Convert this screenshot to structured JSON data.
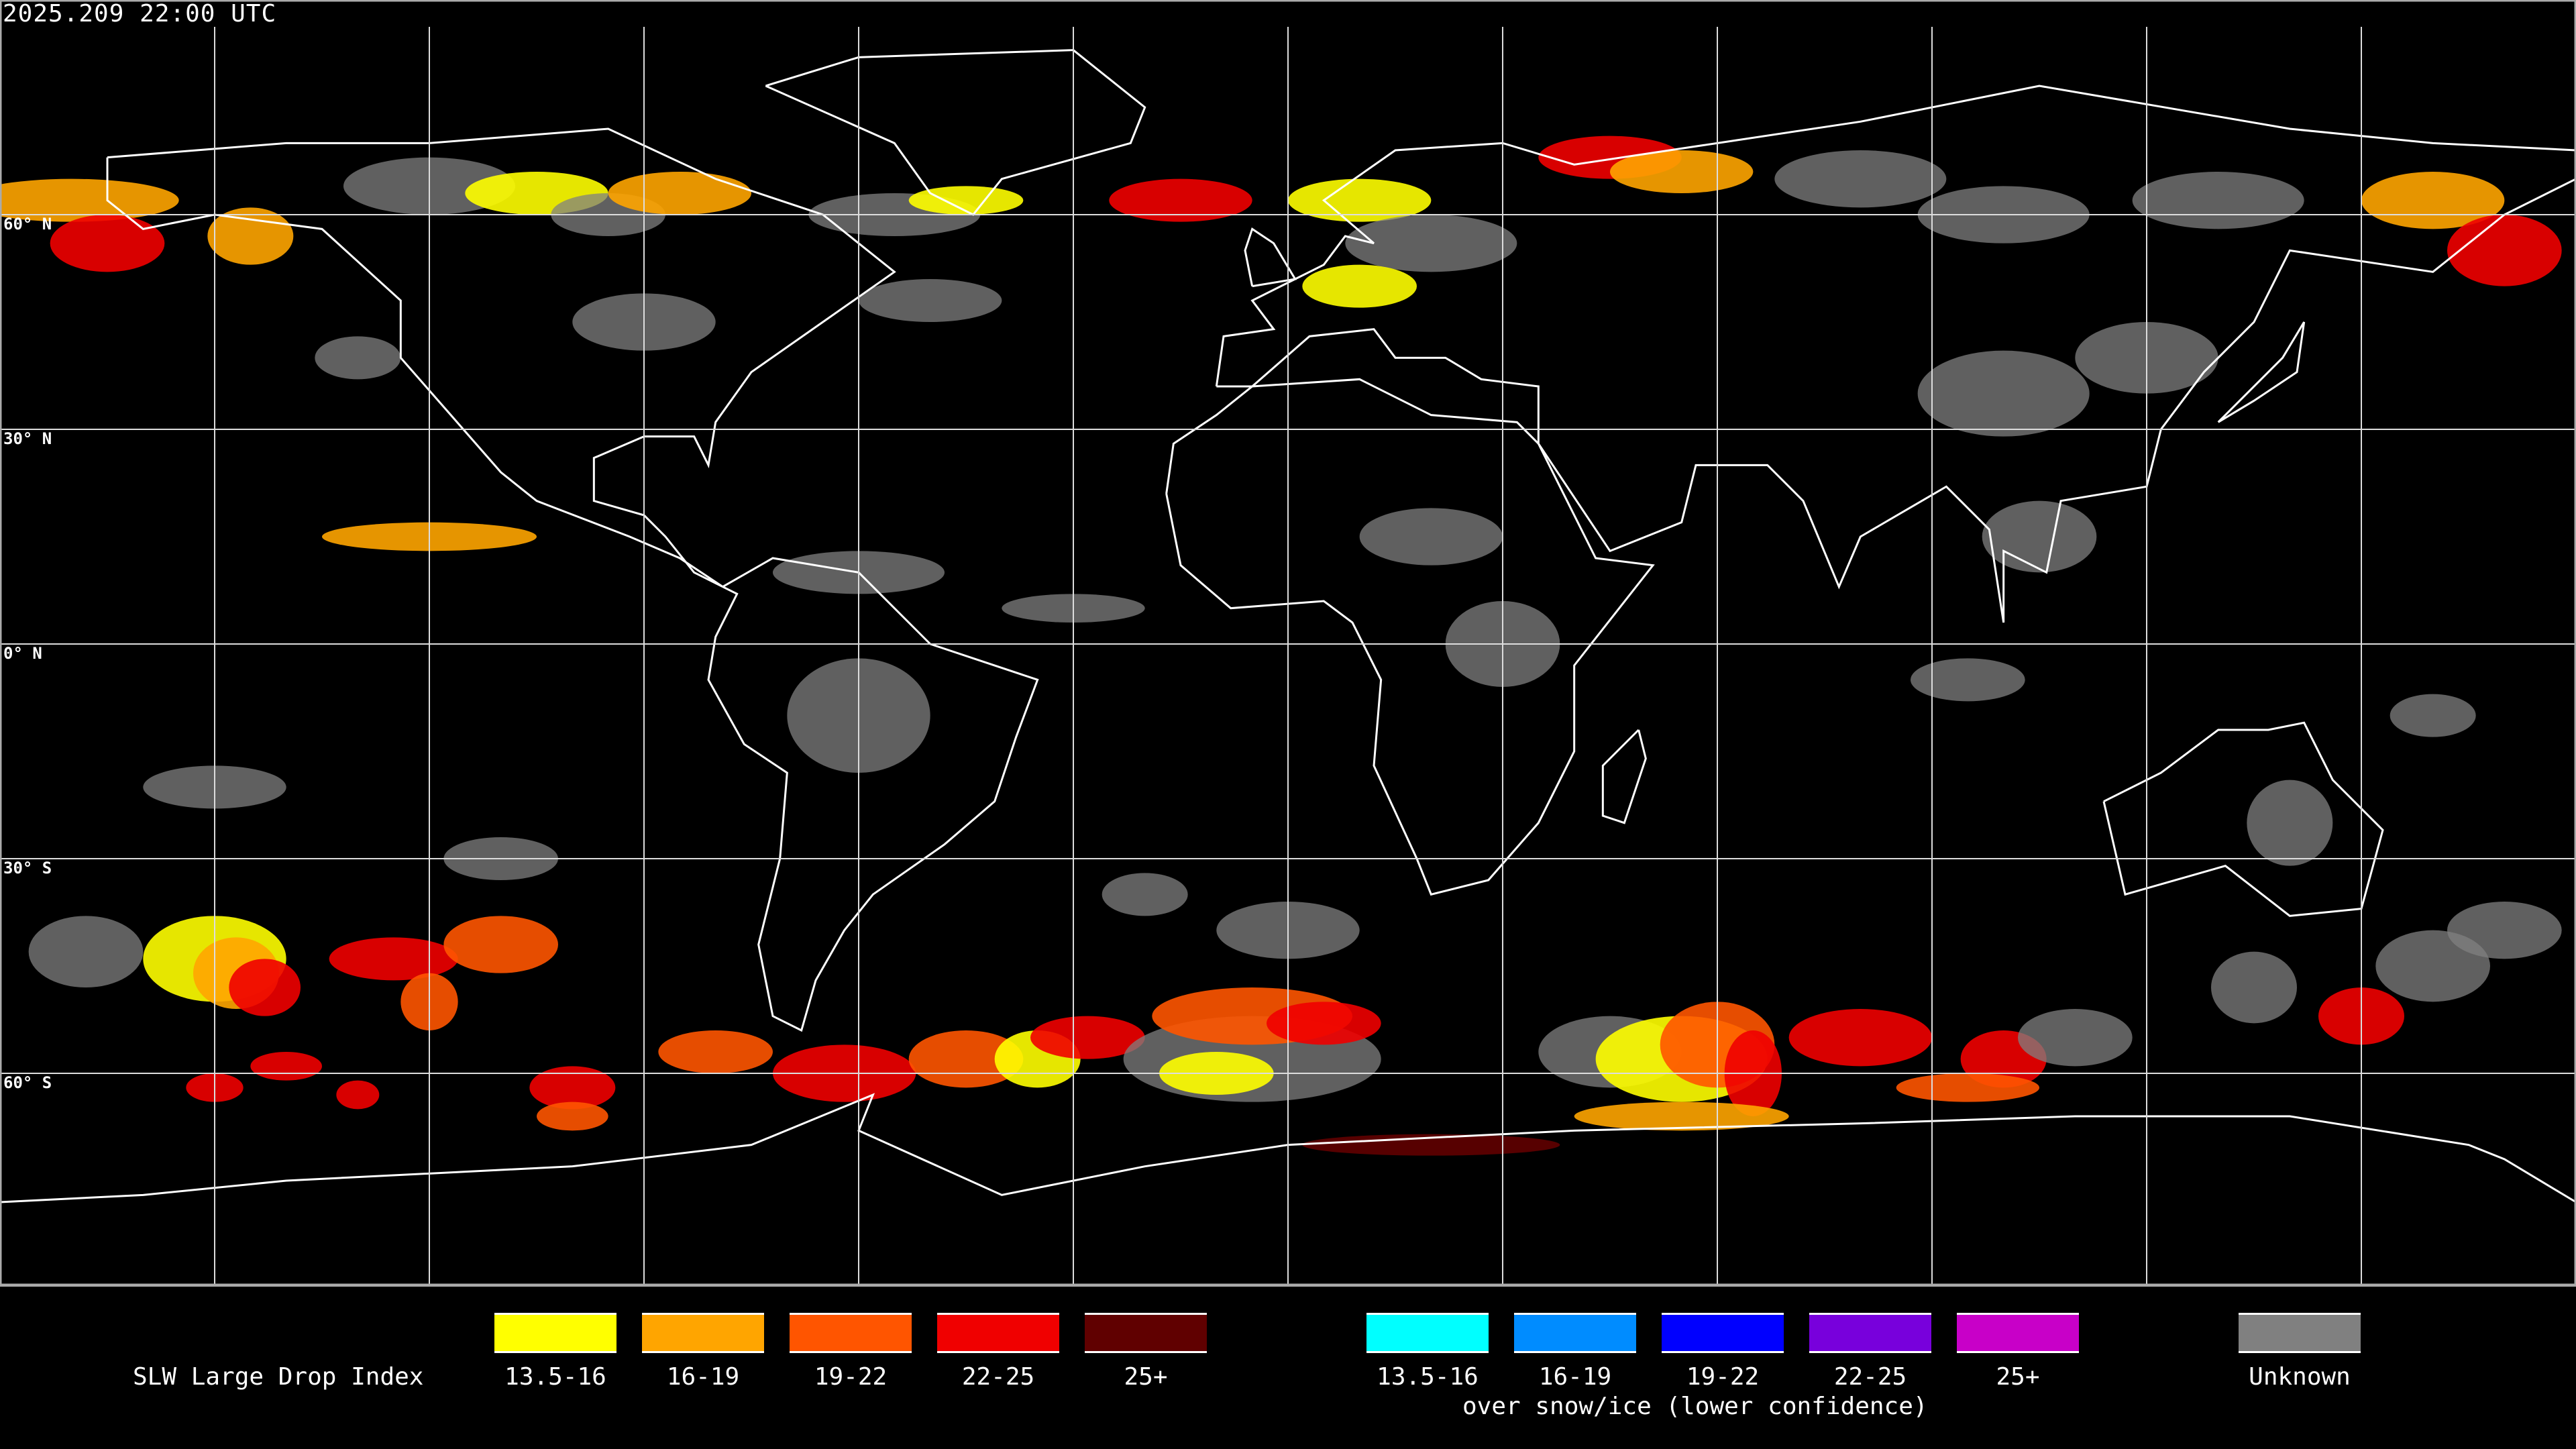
{
  "timestamp": "2025.209 22:00 UTC",
  "lat_labels": [
    "60° N",
    "30° N",
    "0° N",
    "30° S",
    "60° S"
  ],
  "legend": {
    "title": "SLW Large Drop Index",
    "subtitle": "over snow/ice (lower confidence)",
    "standard": [
      {
        "label": "13.5-16",
        "color": "#ffff00"
      },
      {
        "label": "16-19",
        "color": "#ffa500"
      },
      {
        "label": "19-22",
        "color": "#ff5500"
      },
      {
        "label": "22-25",
        "color": "#f00000"
      },
      {
        "label": "25+",
        "color": "#600000"
      }
    ],
    "snow_ice": [
      {
        "label": "13.5-16",
        "color": "#00ffff"
      },
      {
        "label": "16-19",
        "color": "#008cff"
      },
      {
        "label": "19-22",
        "color": "#0000ff"
      },
      {
        "label": "22-25",
        "color": "#7800dc"
      },
      {
        "label": "25+",
        "color": "#c800c8"
      }
    ],
    "unknown": {
      "label": "Unknown",
      "color": "#808080"
    }
  },
  "map": {
    "projection": "equirectangular",
    "graticule_deg": 30,
    "lon_range": [
      -180,
      180
    ],
    "lat_range": [
      -90,
      90
    ]
  }
}
